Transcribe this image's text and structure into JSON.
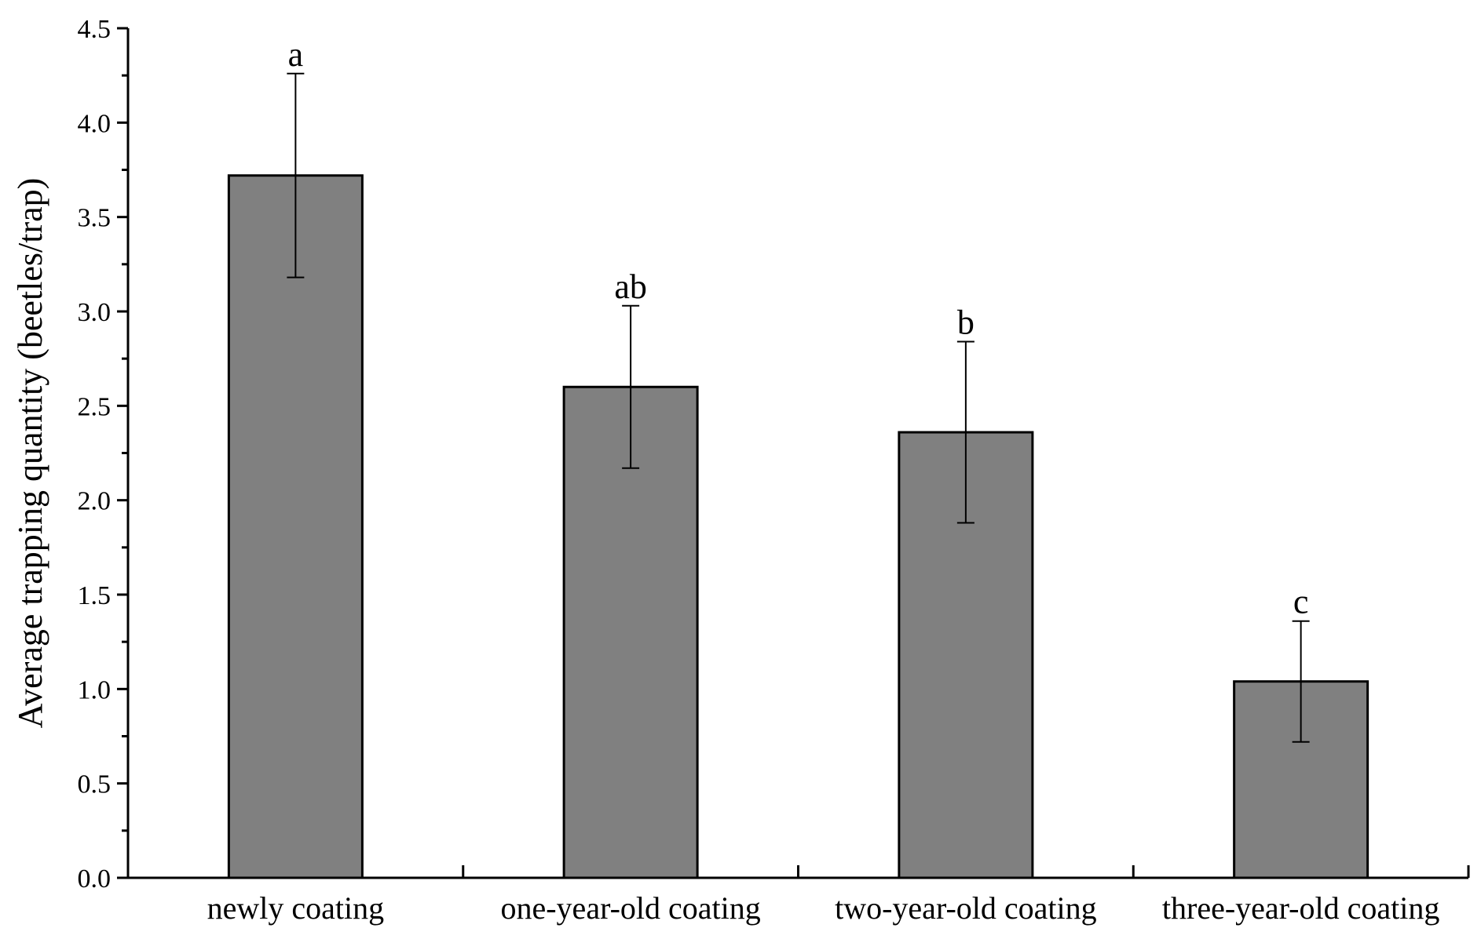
{
  "chart_data": {
    "type": "bar",
    "title": "",
    "xlabel": "",
    "ylabel": "Average trapping quantity (beetles/trap)",
    "ylim": [
      0,
      4.5
    ],
    "y_ticks": [
      "0.0",
      "0.5",
      "1.0",
      "1.5",
      "2.0",
      "2.5",
      "3.0",
      "3.5",
      "4.0",
      "4.5"
    ],
    "categories": [
      "newly coating",
      "one-year-old coating",
      "two-year-old coating",
      "three-year-old coating"
    ],
    "values": [
      3.72,
      2.6,
      2.36,
      1.04
    ],
    "error_upper": [
      4.26,
      3.03,
      2.84,
      1.36
    ],
    "error_lower": [
      3.18,
      2.17,
      1.88,
      0.72
    ],
    "significance_letters": [
      "a",
      "ab",
      "b",
      "c"
    ],
    "bar_color": "#808080",
    "grid": false,
    "legend": "none"
  }
}
